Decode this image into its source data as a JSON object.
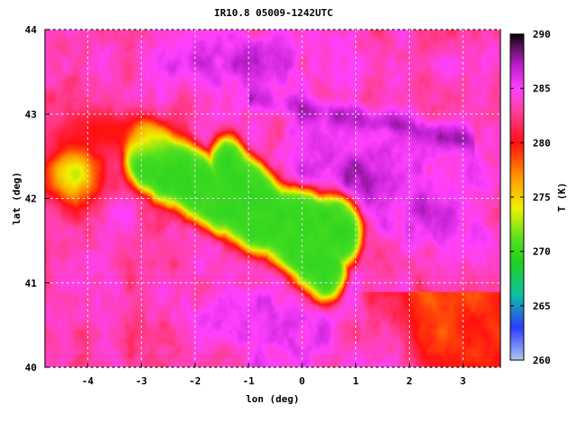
{
  "chart_data": {
    "type": "heatmap",
    "title": "IR10.8 05009-1242UTC",
    "xlabel": "lon (deg)",
    "ylabel": "lat (deg)",
    "xlim": [
      -4.8,
      3.7
    ],
    "ylim": [
      40,
      44
    ],
    "xticks": [
      -4,
      -3,
      -2,
      -1,
      0,
      1,
      2,
      3
    ],
    "yticks": [
      40,
      41,
      42,
      43,
      44
    ],
    "grid": true,
    "colorbar": {
      "label": "T (K)",
      "min": 260,
      "max": 290,
      "ticks": [
        260,
        265,
        270,
        275,
        280,
        285,
        290
      ],
      "stops": [
        {
          "t": 260,
          "color": "#b0c8f0"
        },
        {
          "t": 263,
          "color": "#2a3cff"
        },
        {
          "t": 266,
          "color": "#10c0a0"
        },
        {
          "t": 269,
          "color": "#20d020"
        },
        {
          "t": 271,
          "color": "#50e020"
        },
        {
          "t": 274,
          "color": "#f0f000"
        },
        {
          "t": 277,
          "color": "#ff9000"
        },
        {
          "t": 280,
          "color": "#ff1010"
        },
        {
          "t": 283,
          "color": "#ff40a0"
        },
        {
          "t": 285,
          "color": "#ff40ff"
        },
        {
          "t": 287,
          "color": "#c020d0"
        },
        {
          "t": 289,
          "color": "#501050"
        },
        {
          "t": 290,
          "color": "#000000"
        }
      ]
    },
    "regions": {
      "cold_cloud_center": [
        -0.5,
        41.8
      ],
      "cold_cloud_temperature_k": 270,
      "warm_background_temperature_k": 284,
      "warmest_pyrenees_temperature_k": 289,
      "southeast_warm_temperature_k": 276
    }
  }
}
